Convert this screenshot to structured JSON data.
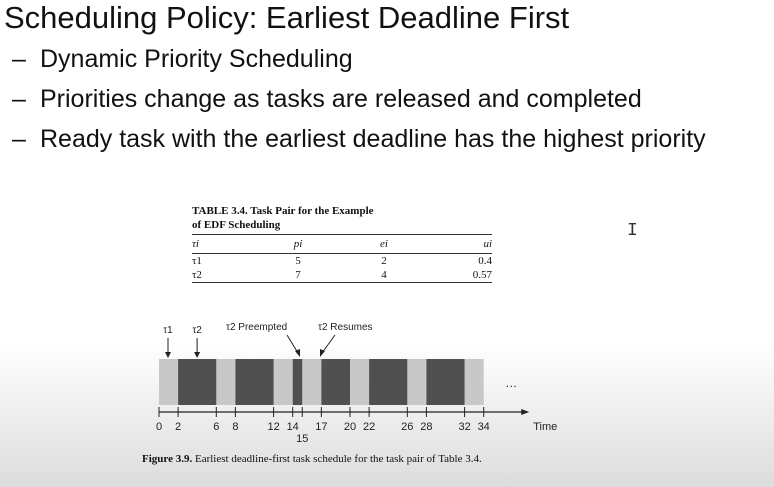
{
  "slide": {
    "title": "Scheduling Policy: Earliest Deadline First",
    "bullets": [
      "Dynamic Priority Scheduling",
      "Priorities change as tasks are released and completed",
      "Ready task with the earliest deadline has the highest priority"
    ],
    "bullet_marker": "–"
  },
  "table": {
    "caption_line1": "TABLE 3.4. Task Pair for the Example",
    "caption_line2": "of EDF Scheduling",
    "headers": [
      "τi",
      "pi",
      "ei",
      "ui"
    ],
    "rows": [
      [
        "τ1",
        "5",
        "2",
        "0.4"
      ],
      [
        "τ2",
        "7",
        "4",
        "0.57"
      ]
    ]
  },
  "timeline": {
    "release_labels": [
      "τ1",
      "τ2"
    ],
    "preempted_label": "τ2 Preempted",
    "resumes_label": "τ2 Resumes",
    "tick_values": [
      0,
      2,
      6,
      8,
      12,
      14,
      15,
      17,
      20,
      22,
      26,
      28,
      32,
      34
    ],
    "axis_max": 35,
    "axis_label": "Time",
    "ellipsis": "…",
    "tau1_segments": [
      [
        0,
        2
      ],
      [
        6,
        8
      ],
      [
        12,
        14
      ],
      [
        15,
        17
      ],
      [
        20,
        22
      ],
      [
        26,
        28
      ],
      [
        32,
        34
      ]
    ],
    "tau2_segments": [
      [
        2,
        6
      ],
      [
        8,
        12
      ],
      [
        14,
        15
      ],
      [
        17,
        20
      ],
      [
        22,
        26
      ],
      [
        28,
        32
      ]
    ],
    "colors": {
      "tau1": "#c8c8c8",
      "tau2": "#505050",
      "axis": "#222222"
    }
  },
  "figure": {
    "label": "Figure 3.9.",
    "caption": "Earliest deadline-first task schedule for the task pair of Table 3.4."
  },
  "cursor": {
    "icon": "text-cursor-icon",
    "glyph": "I"
  }
}
